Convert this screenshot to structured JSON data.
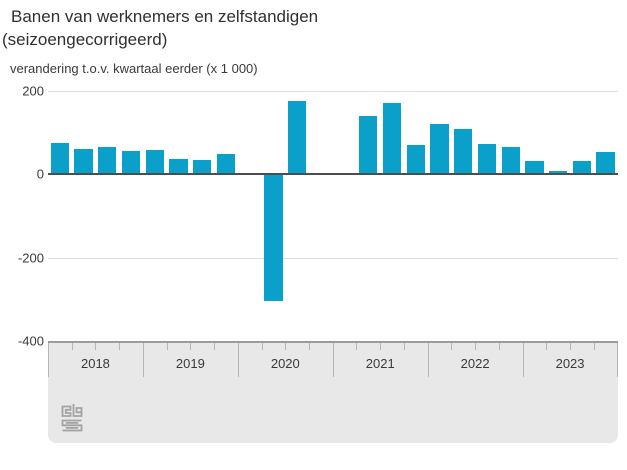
{
  "title": {
    "line1": "Banen van werknemers en zelfstandigen",
    "line2": "(seizoengecorrigeerd)"
  },
  "subtitle": "verandering t.o.v. kwartaal eerder (x 1 000)",
  "chart_data": {
    "type": "bar",
    "title": "Banen van werknemers en zelfstandigen (seizoengecorrigeerd)",
    "ylabel": "verandering t.o.v. kwartaal eerder (x 1 000)",
    "xlabel": "",
    "categories": [
      "2018 Q1",
      "2018 Q2",
      "2018 Q3",
      "2018 Q4",
      "2019 Q1",
      "2019 Q2",
      "2019 Q3",
      "2019 Q4",
      "2020 Q1",
      "2020 Q2",
      "2020 Q3",
      "2020 Q4",
      "2021 Q1",
      "2021 Q2",
      "2021 Q3",
      "2021 Q4",
      "2022 Q1",
      "2022 Q2",
      "2022 Q3",
      "2022 Q4",
      "2023 Q1",
      "2023 Q2",
      "2023 Q3",
      "2023 Q4"
    ],
    "values": [
      75,
      61,
      65,
      55,
      58,
      36,
      33,
      47,
      0,
      -305,
      175,
      0,
      0,
      140,
      170,
      69,
      120,
      108,
      72,
      64,
      31,
      6,
      31,
      53
    ],
    "x_year_labels": [
      "2018",
      "2019",
      "2020",
      "2021",
      "2022",
      "2023"
    ],
    "y_ticks": [
      200,
      0,
      -200,
      -400
    ],
    "ylim": [
      -400,
      200
    ],
    "grid": true,
    "legend": false
  },
  "colors": {
    "bar": "#0aa0ca",
    "zero_axis": "#4d4d4d",
    "gridline": "#dcdcdc",
    "band_background": "#e8e8e8",
    "band_border": "#9b9b9b",
    "tick": "#b5b5b5",
    "text": "#3a3a3a"
  },
  "logo": {
    "name": "cbs-logo"
  }
}
